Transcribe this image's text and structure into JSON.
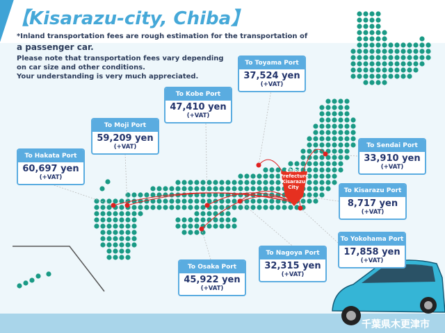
{
  "title": "【Kisarazu-city, Chiba】",
  "notes": [
    "*Inland transportation fees are rough estimation for the transportation of",
    "a passenger car.",
    "Please note that transportation fees vary depending",
    "on car size and other conditions.",
    "Your understanding is very much appreciated."
  ],
  "destination_pin": [
    "Chiba",
    "Prefecture",
    "Kisarazu",
    "City"
  ],
  "footer_jp": "千葉県木更津市",
  "colors": {
    "accent": "#5aace0",
    "title": "#45a8d8",
    "price": "#22336b",
    "map_dots": "#1a9a85",
    "route": "#e02020"
  },
  "ports": [
    {
      "label": "To Toyama Port",
      "price": "37,524 yen",
      "vat": "(+VAT)"
    },
    {
      "label": "To Kobe Port",
      "price": "47,410 yen",
      "vat": "(+VAT)"
    },
    {
      "label": "To Moji Port",
      "price": "59,209 yen",
      "vat": "(+VAT)"
    },
    {
      "label": "To Hakata Port",
      "price": "60,697 yen",
      "vat": "(+VAT)"
    },
    {
      "label": "To Sendai Port",
      "price": "33,910 yen",
      "vat": "(+VAT)"
    },
    {
      "label": "To Kisarazu Port",
      "price": "8,717 yen",
      "vat": "(+VAT)"
    },
    {
      "label": "To Yokohama Port",
      "price": "17,858 yen",
      "vat": "(+VAT)"
    },
    {
      "label": "To Nagoya Port",
      "price": "32,315 yen",
      "vat": "(+VAT)"
    },
    {
      "label": "To Osaka Port",
      "price": "45,922 yen",
      "vat": "(+VAT)"
    }
  ]
}
